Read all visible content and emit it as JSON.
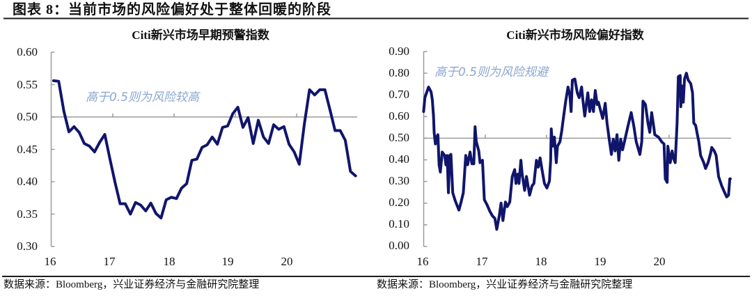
{
  "header": {
    "title": "图表 8：当前市场的风险偏好处于整体回暖的阶段"
  },
  "colors": {
    "line": "#10156b",
    "annotation": "#8aa6cf",
    "axis": "#9a9a9a",
    "rule": "#1a1a1a"
  },
  "charts": [
    {
      "title": "Citi新兴市场早期预警指数",
      "annotation": "高于0.5则为风险较高",
      "y_ticks": [
        "0.60",
        "0.55",
        "0.50",
        "0.45",
        "0.40",
        "0.35",
        "0.30"
      ],
      "x_ticks": [
        "16",
        "17",
        "18",
        "19",
        "20"
      ],
      "source": "数据来源：Bloomberg，兴业证券经济与金融研究院整理"
    },
    {
      "title": "Citi新兴市场风险偏好指数",
      "annotation": "高于0.5则为风险规避",
      "y_ticks": [
        "0.90",
        "0.80",
        "0.70",
        "0.60",
        "0.50",
        "0.40",
        "0.30",
        "0.20",
        "0.10",
        "0.00"
      ],
      "x_ticks": [
        "16",
        "17",
        "18",
        "19",
        "20"
      ],
      "source": "数据来源：Bloomberg，兴业证券经济与金融研究院整理"
    }
  ],
  "chart_data": [
    {
      "type": "line",
      "title": "Citi新兴市场早期预警指数",
      "xlabel": "",
      "ylabel": "",
      "ylim": [
        0.3,
        0.6
      ],
      "y_ticks": [
        0.6,
        0.55,
        0.5,
        0.45,
        0.4,
        0.35,
        0.3
      ],
      "x_tick_labels": [
        "16",
        "17",
        "18",
        "19",
        "20"
      ],
      "reference_line": 0.5,
      "annotations": [
        {
          "text": "高于0.5则为风险较高"
        }
      ],
      "grid": false,
      "legend": null,
      "x": [
        "2016-01",
        "2016-02",
        "2016-03",
        "2016-04",
        "2016-05",
        "2016-06",
        "2016-07",
        "2016-08",
        "2016-09",
        "2016-10",
        "2016-11",
        "2016-12",
        "2017-01",
        "2017-02",
        "2017-03",
        "2017-04",
        "2017-05",
        "2017-06",
        "2017-07",
        "2017-08",
        "2017-09",
        "2017-10",
        "2017-11",
        "2017-12",
        "2018-01",
        "2018-02",
        "2018-03",
        "2018-04",
        "2018-05",
        "2018-06",
        "2018-07",
        "2018-08",
        "2018-09",
        "2018-10",
        "2018-11",
        "2018-12",
        "2019-01",
        "2019-02",
        "2019-03",
        "2019-04",
        "2019-05",
        "2019-06",
        "2019-07",
        "2019-08",
        "2019-09",
        "2019-10",
        "2019-11",
        "2019-12",
        "2020-01",
        "2020-02",
        "2020-03",
        "2020-04",
        "2020-05",
        "2020-06",
        "2020-07",
        "2020-08",
        "2020-09",
        "2020-10",
        "2020-11",
        "2020-12"
      ],
      "series": [
        {
          "name": "Citi新兴市场早期预警指数",
          "values": [
            0.556,
            0.555,
            0.509,
            0.477,
            0.485,
            0.476,
            0.459,
            0.455,
            0.446,
            0.461,
            0.473,
            0.435,
            0.399,
            0.366,
            0.366,
            0.35,
            0.368,
            0.364,
            0.355,
            0.367,
            0.351,
            0.344,
            0.372,
            0.376,
            0.374,
            0.39,
            0.397,
            0.433,
            0.435,
            0.453,
            0.457,
            0.469,
            0.458,
            0.484,
            0.486,
            0.505,
            0.515,
            0.484,
            0.499,
            0.459,
            0.495,
            0.469,
            0.459,
            0.488,
            0.481,
            0.485,
            0.458,
            0.446,
            0.427,
            0.489,
            0.542,
            0.534,
            0.542,
            0.542,
            0.511,
            0.479,
            0.479,
            0.464,
            0.416,
            0.409
          ]
        }
      ]
    },
    {
      "type": "line",
      "title": "Citi新兴市场风险偏好指数",
      "xlabel": "",
      "ylabel": "",
      "ylim": [
        0.0,
        0.9
      ],
      "y_ticks": [
        0.9,
        0.8,
        0.7,
        0.6,
        0.5,
        0.4,
        0.3,
        0.2,
        0.1,
        0.0
      ],
      "x_tick_labels": [
        "16",
        "17",
        "18",
        "19",
        "20"
      ],
      "reference_line": 0.5,
      "annotations": [
        {
          "text": "高于0.5则为风险规避"
        }
      ],
      "grid": false,
      "legend": null,
      "x": [
        2016.01,
        2016.03,
        2016.09,
        2016.13,
        2016.15,
        2016.17,
        2016.18,
        2016.2,
        2016.22,
        2016.24,
        2016.26,
        2016.28,
        2016.31,
        2016.35,
        2016.37,
        2016.39,
        2016.41,
        2016.43,
        2016.45,
        2016.48,
        2016.52,
        2016.58,
        2016.61,
        2016.65,
        2016.69,
        2016.72,
        2016.76,
        2016.79,
        2016.82,
        2016.84,
        2016.86,
        2016.9,
        2016.92,
        2016.96,
        2016.99,
        2017.03,
        2017.08,
        2017.12,
        2017.16,
        2017.19,
        2017.23,
        2017.26,
        2017.29,
        2017.33,
        2017.36,
        2017.4,
        2017.44,
        2017.48,
        2017.5,
        2017.53,
        2017.55,
        2017.58,
        2017.6,
        2017.64,
        2017.67,
        2017.72,
        2017.76,
        2017.79,
        2017.83,
        2017.86,
        2017.89,
        2017.92,
        2017.96,
        2018.0,
        2018.04,
        2018.06,
        2018.07,
        2018.09,
        2018.12,
        2018.15,
        2018.17,
        2018.21,
        2018.24,
        2018.26,
        2018.3,
        2018.34,
        2018.37,
        2018.39,
        2018.41,
        2018.45,
        2018.49,
        2018.52,
        2018.56,
        2018.58,
        2018.61,
        2018.66,
        2018.69,
        2018.72,
        2018.75,
        2018.78,
        2018.81,
        2018.83,
        2018.86,
        2018.9,
        2018.94,
        2018.97,
        2019.01,
        2019.04,
        2019.07,
        2019.1,
        2019.13,
        2019.16,
        2019.19,
        2019.22,
        2019.26,
        2019.31,
        2019.36,
        2019.4,
        2019.44,
        2019.5,
        2019.53,
        2019.55,
        2019.59,
        2019.63,
        2019.66,
        2019.69,
        2019.72,
        2019.74,
        2019.8,
        2019.85,
        2019.89,
        2019.91,
        2019.94,
        2019.95,
        2019.99,
        2020.02,
        2020.04,
        2020.07,
        2020.1,
        2020.12,
        2020.15,
        2020.16,
        2020.18,
        2020.2,
        2020.22,
        2020.25,
        2020.28,
        2020.32,
        2020.35,
        2020.37,
        2020.4,
        2020.42,
        2020.45,
        2020.48,
        2020.53,
        2020.56,
        2020.6,
        2020.64,
        2020.66,
        2020.7,
        2020.73,
        2020.77,
        2020.82,
        2020.86,
        2020.9,
        2020.93,
        2020.95,
        2020.96
      ],
      "series": [
        {
          "name": "Citi新兴市场风险偏好指数",
          "values": [
            0.623,
            0.687,
            0.736,
            0.714,
            0.677,
            0.602,
            0.527,
            0.473,
            0.505,
            0.516,
            0.377,
            0.344,
            0.436,
            0.42,
            0.377,
            0.42,
            0.248,
            0.42,
            0.425,
            0.248,
            0.211,
            0.168,
            0.2,
            0.248,
            0.42,
            0.377,
            0.436,
            0.382,
            0.382,
            0.553,
            0.484,
            0.441,
            0.387,
            0.398,
            0.216,
            0.194,
            0.162,
            0.141,
            0.13,
            0.079,
            0.141,
            0.2,
            0.12,
            0.205,
            0.184,
            0.205,
            0.323,
            0.355,
            0.291,
            0.334,
            0.291,
            0.398,
            0.334,
            0.259,
            0.323,
            0.237,
            0.28,
            0.291,
            0.398,
            0.366,
            0.409,
            0.355,
            0.291,
            0.27,
            0.302,
            0.398,
            0.543,
            0.463,
            0.505,
            0.387,
            0.463,
            0.484,
            0.537,
            0.58,
            0.666,
            0.736,
            0.698,
            0.623,
            0.768,
            0.773,
            0.709,
            0.687,
            0.736,
            0.677,
            0.602,
            0.709,
            0.623,
            0.677,
            0.623,
            0.72,
            0.655,
            0.666,
            0.634,
            0.591,
            0.661,
            0.57,
            0.484,
            0.425,
            0.495,
            0.441,
            0.516,
            0.398,
            0.495,
            0.446,
            0.495,
            0.559,
            0.618,
            0.559,
            0.484,
            0.425,
            0.484,
            0.671,
            0.655,
            0.57,
            0.527,
            0.618,
            0.559,
            0.516,
            0.505,
            0.484,
            0.473,
            0.312,
            0.296,
            0.463,
            0.387,
            0.441,
            0.409,
            0.387,
            0.57,
            0.784,
            0.789,
            0.645,
            0.741,
            0.666,
            0.773,
            0.8,
            0.768,
            0.752,
            0.709,
            0.57,
            0.559,
            0.527,
            0.484,
            0.42,
            0.387,
            0.36,
            0.387,
            0.43,
            0.457,
            0.441,
            0.42,
            0.323,
            0.28,
            0.254,
            0.229,
            0.237,
            0.312,
            0.312
          ]
        }
      ]
    }
  ]
}
